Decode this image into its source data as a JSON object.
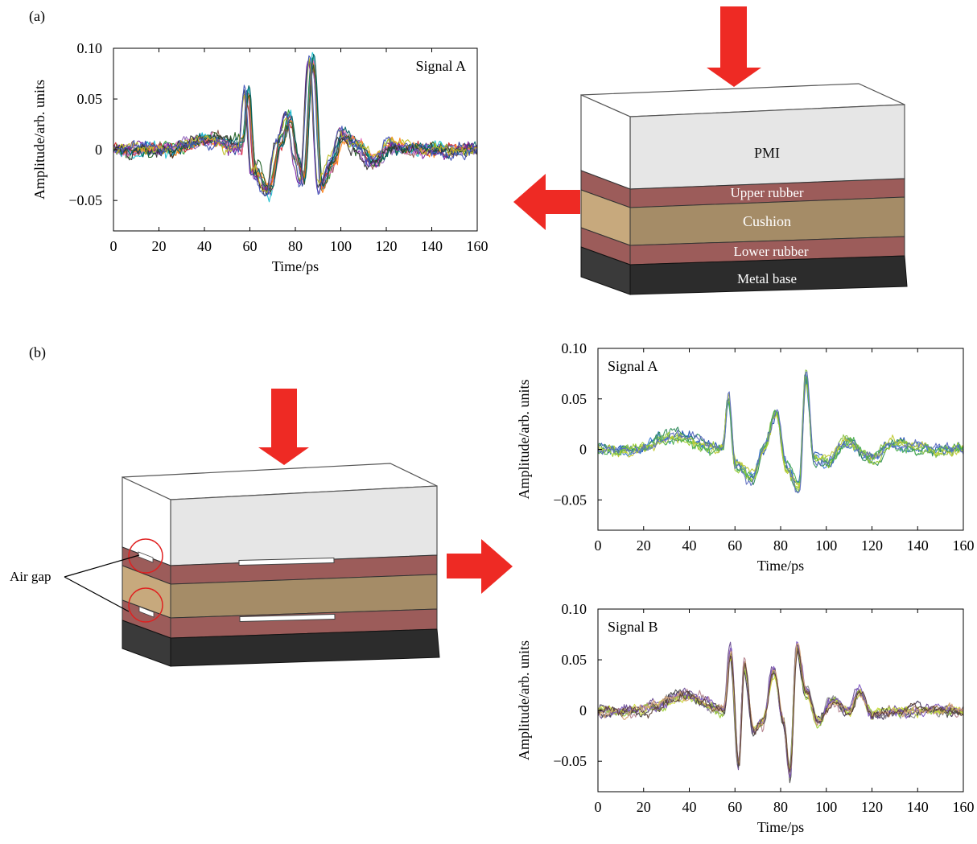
{
  "panels": {
    "a": "(a)",
    "b": "(b)"
  },
  "stack": {
    "layers": [
      "PMI",
      "Upper rubber",
      "Cushion",
      "Lower rubber",
      "Metal base"
    ],
    "air_gap_label": "Air gap"
  },
  "colors": {
    "arrow": "#ee2a24",
    "pmi": "#e6e6e6",
    "rubber": "#9c5c5a",
    "cushion": "#a58c67",
    "cushion_light": "#c7a97d",
    "metal": "#2c2c2c",
    "annotation": "#e02020"
  },
  "chart_data": [
    {
      "type": "line",
      "id": "a",
      "annotation": "Signal A",
      "xlabel": "Time/ps",
      "ylabel": "Amplitude/arb. units",
      "xlim": [
        0,
        160
      ],
      "ylim": [
        -0.08,
        0.1
      ],
      "xticks": [
        0,
        20,
        40,
        60,
        80,
        100,
        120,
        140,
        160
      ],
      "yticks": [
        0.1,
        0.05,
        0,
        -0.05
      ],
      "ytick_labels": [
        "0.10",
        "0.05",
        "0",
        "−0.05"
      ],
      "features": [
        {
          "t": 42,
          "a": 0.01
        },
        {
          "t": 56,
          "a": 0.003
        },
        {
          "t": 58.5,
          "a": 0.056
        },
        {
          "t": 61.5,
          "a": -0.02
        },
        {
          "t": 68,
          "a": -0.04
        },
        {
          "t": 73,
          "a": 0.008
        },
        {
          "t": 77,
          "a": 0.032
        },
        {
          "t": 80.5,
          "a": -0.01
        },
        {
          "t": 83,
          "a": -0.03
        },
        {
          "t": 87,
          "a": 0.092
        },
        {
          "t": 91,
          "a": -0.036
        },
        {
          "t": 96,
          "a": -0.012
        },
        {
          "t": 100,
          "a": 0.015
        },
        {
          "t": 107,
          "a": 0.005
        },
        {
          "t": 114,
          "a": -0.012
        },
        {
          "t": 122,
          "a": 0.004
        }
      ],
      "series_count": 14,
      "noise": 0.0035,
      "jitter": 1.2,
      "palette": [
        "#1f3a93",
        "#2ca02c",
        "#d62728",
        "#9467bd",
        "#17becf",
        "#8c564b",
        "#e377c2",
        "#ff7f0e",
        "#1b5e20",
        "#006064",
        "#7b1fa2",
        "#333333",
        "#bcbd22",
        "#3f51b5"
      ]
    },
    {
      "type": "line",
      "id": "b1",
      "annotation": "Signal A",
      "xlabel": "Time/ps",
      "ylabel": "Amplitude/arb. units",
      "xlim": [
        0,
        160
      ],
      "ylim": [
        -0.08,
        0.1
      ],
      "xticks": [
        0,
        20,
        40,
        60,
        80,
        100,
        120,
        140,
        160
      ],
      "yticks": [
        0.1,
        0.05,
        0,
        -0.05
      ],
      "ytick_labels": [
        "0.10",
        "0.05",
        "0",
        "−0.05"
      ],
      "features": [
        {
          "t": 35,
          "a": 0.013
        },
        {
          "t": 55,
          "a": 0.0
        },
        {
          "t": 57.5,
          "a": 0.051
        },
        {
          "t": 60.5,
          "a": -0.015
        },
        {
          "t": 68,
          "a": -0.028
        },
        {
          "t": 73,
          "a": 0.002
        },
        {
          "t": 78.5,
          "a": 0.036
        },
        {
          "t": 83,
          "a": -0.02
        },
        {
          "t": 88.5,
          "a": -0.038
        },
        {
          "t": 91.5,
          "a": 0.072
        },
        {
          "t": 95,
          "a": -0.01
        },
        {
          "t": 101,
          "a": -0.012
        },
        {
          "t": 109,
          "a": 0.008
        },
        {
          "t": 122,
          "a": -0.01
        },
        {
          "t": 128,
          "a": 0.005
        }
      ],
      "series_count": 8,
      "noise": 0.003,
      "jitter": 0.6,
      "palette": [
        "#1f4fb4",
        "#3a7bd5",
        "#2e8b57",
        "#8bc34a",
        "#9acd32",
        "#c0ca33",
        "#4caf50",
        "#5c6bc0"
      ]
    },
    {
      "type": "line",
      "id": "b2",
      "annotation": "Signal B",
      "xlabel": "Time/ps",
      "ylabel": "Amplitude/arb. units",
      "xlim": [
        0,
        160
      ],
      "ylim": [
        -0.08,
        0.1
      ],
      "xticks": [
        0,
        20,
        40,
        60,
        80,
        100,
        120,
        140,
        160
      ],
      "yticks": [
        0.1,
        0.05,
        0,
        -0.05
      ],
      "ytick_labels": [
        "0.10",
        "0.05",
        "0",
        "−0.05"
      ],
      "features": [
        {
          "t": 38,
          "a": 0.015
        },
        {
          "t": 55,
          "a": 0.0
        },
        {
          "t": 58,
          "a": 0.058
        },
        {
          "t": 61.5,
          "a": -0.055
        },
        {
          "t": 64,
          "a": 0.045
        },
        {
          "t": 68,
          "a": -0.02
        },
        {
          "t": 72,
          "a": -0.012
        },
        {
          "t": 77,
          "a": 0.04
        },
        {
          "t": 81,
          "a": -0.01
        },
        {
          "t": 84,
          "a": -0.063
        },
        {
          "t": 87,
          "a": 0.062
        },
        {
          "t": 91,
          "a": 0.018
        },
        {
          "t": 96,
          "a": -0.012
        },
        {
          "t": 103,
          "a": 0.01
        },
        {
          "t": 110,
          "a": 0.0
        },
        {
          "t": 114,
          "a": 0.018
        },
        {
          "t": 120,
          "a": -0.004
        }
      ],
      "series_count": 10,
      "noise": 0.003,
      "jitter": 0.6,
      "palette": [
        "#3b2d4f",
        "#6a4c93",
        "#b5838d",
        "#8e8e8e",
        "#9acd32",
        "#cddc39",
        "#4a4a4a",
        "#7e57c2",
        "#d4a373",
        "#5d4037"
      ]
    }
  ]
}
